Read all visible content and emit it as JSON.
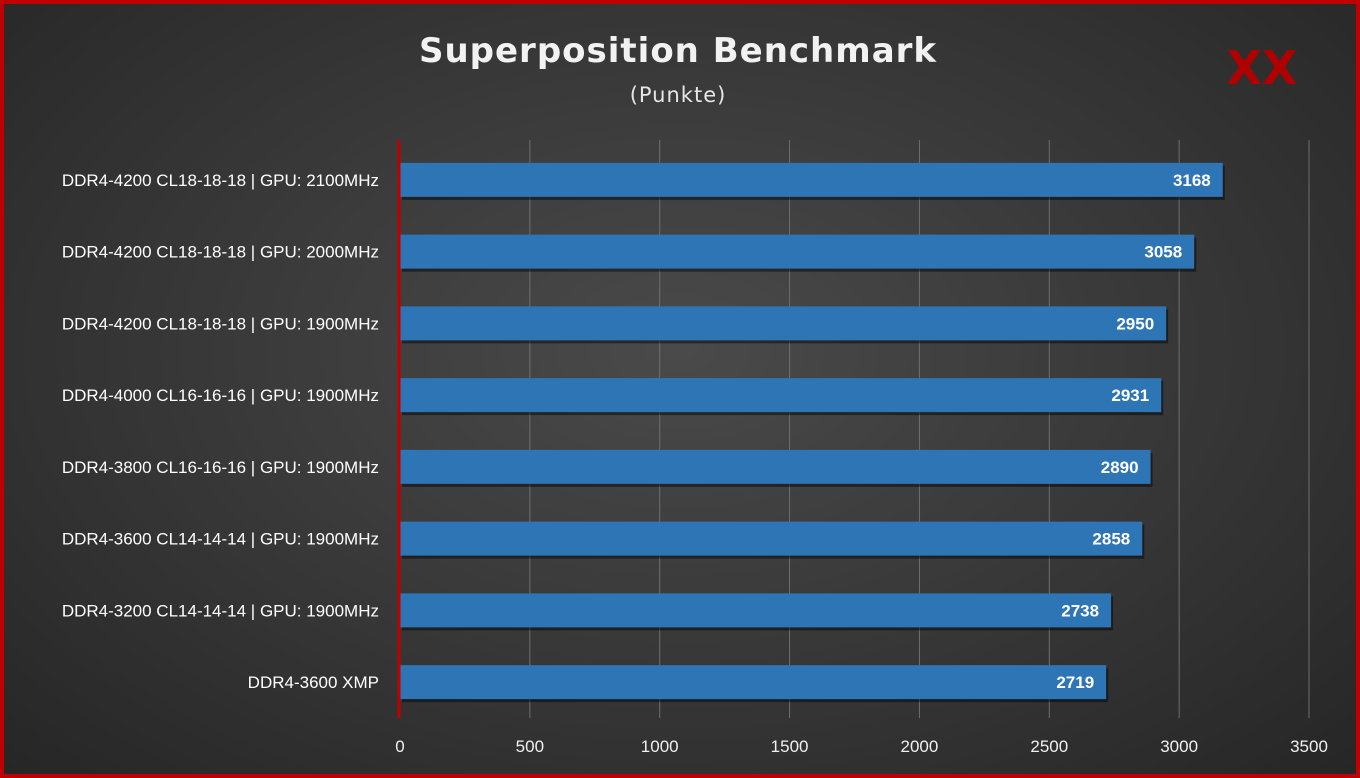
{
  "chart_data": {
    "type": "bar",
    "orientation": "horizontal",
    "title": "Superposition  Benchmark",
    "subtitle": "(Punkte)",
    "logo_text": "XX",
    "categories": [
      "DDR4-4200 CL18-18-18 | GPU: 2100MHz",
      "DDR4-4200 CL18-18-18 | GPU: 2000MHz",
      "DDR4-4200 CL18-18-18 | GPU: 1900MHz",
      "DDR4-4000 CL16-16-16 | GPU: 1900MHz",
      "DDR4-3800 CL16-16-16 | GPU: 1900MHz",
      "DDR4-3600 CL14-14-14 | GPU: 1900MHz",
      "DDR4-3200 CL14-14-14 | GPU: 1900MHz",
      "DDR4-3600 XMP"
    ],
    "values": [
      3168,
      3058,
      2950,
      2931,
      2890,
      2858,
      2738,
      2719
    ],
    "xlim": [
      0,
      3500
    ],
    "xticks": [
      "0",
      "500",
      "1000",
      "1500",
      "2000",
      "2500",
      "3000",
      "3500"
    ],
    "grid": true,
    "legend": "none",
    "colors": {
      "bar": "#2e75b6",
      "axis": "#c00000",
      "grid": "#6e6e6e",
      "frame": "#c00000"
    }
  }
}
